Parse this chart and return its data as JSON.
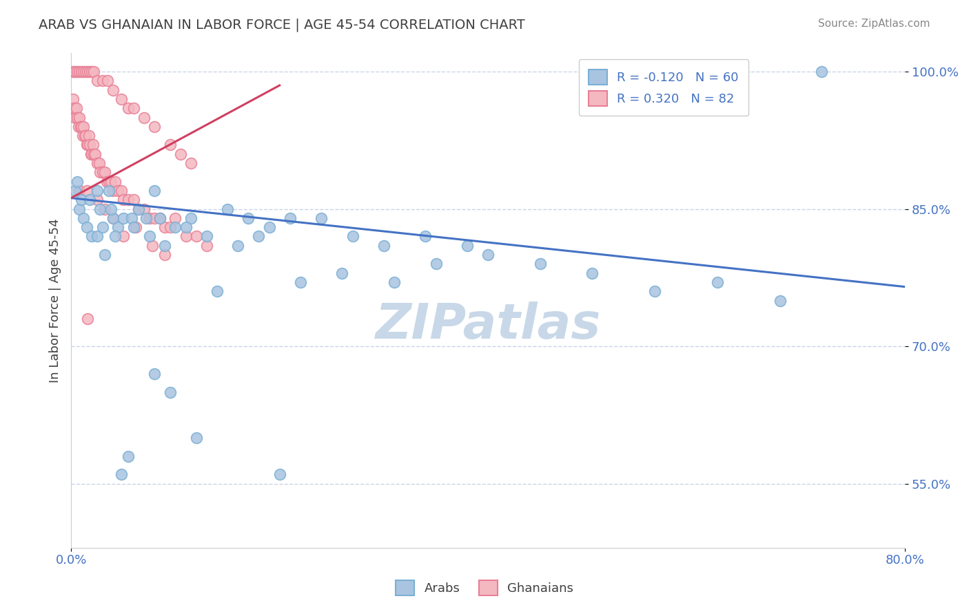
{
  "title": "ARAB VS GHANAIAN IN LABOR FORCE | AGE 45-54 CORRELATION CHART",
  "source_text": "Source: ZipAtlas.com",
  "ylabel": "In Labor Force | Age 45-54",
  "xlim": [
    0.0,
    0.8
  ],
  "ylim": [
    0.48,
    1.02
  ],
  "yticks": [
    0.55,
    0.7,
    0.85,
    1.0
  ],
  "yticklabels": [
    "55.0%",
    "70.0%",
    "85.0%",
    "100.0%"
  ],
  "arab_color": "#a8c4e0",
  "arab_edge_color": "#7aafd4",
  "ghanaian_color": "#f4b8c1",
  "ghanaian_edge_color": "#e87f95",
  "trend_arab_color": "#4472c4",
  "trend_ghanaian_color": "#d04060",
  "legend_arab_R": "-0.120",
  "legend_arab_N": "60",
  "legend_ghanaian_R": "0.320",
  "legend_ghanaian_N": "82",
  "watermark": "ZIPatlas",
  "watermark_color": "#c8d8e8",
  "background_color": "#ffffff",
  "grid_color": "#c8d4e8",
  "title_color": "#404040",
  "axis_label_color": "#404040",
  "tick_label_color": "#4472c4",
  "arab_trend_x0": 0.0,
  "arab_trend_y0": 0.862,
  "arab_trend_x1": 0.8,
  "arab_trend_y1": 0.765,
  "ghanaian_trend_x0": 0.0,
  "ghanaian_trend_y0": 0.862,
  "ghanaian_trend_x1": 0.2,
  "ghanaian_trend_y1": 0.985,
  "arab_x": [
    0.004,
    0.006,
    0.008,
    0.01,
    0.012,
    0.015,
    0.018,
    0.02,
    0.025,
    0.028,
    0.032,
    0.036,
    0.04,
    0.045,
    0.05,
    0.058,
    0.065,
    0.072,
    0.08,
    0.09,
    0.1,
    0.115,
    0.13,
    0.15,
    0.17,
    0.19,
    0.21,
    0.24,
    0.27,
    0.3,
    0.34,
    0.38,
    0.025,
    0.03,
    0.038,
    0.042,
    0.06,
    0.075,
    0.085,
    0.11,
    0.14,
    0.16,
    0.18,
    0.22,
    0.26,
    0.31,
    0.35,
    0.4,
    0.45,
    0.5,
    0.56,
    0.62,
    0.68,
    0.72,
    0.08,
    0.095,
    0.055,
    0.048,
    0.12,
    0.2
  ],
  "arab_y": [
    0.87,
    0.88,
    0.85,
    0.86,
    0.84,
    0.83,
    0.86,
    0.82,
    0.87,
    0.85,
    0.8,
    0.87,
    0.84,
    0.83,
    0.84,
    0.84,
    0.85,
    0.84,
    0.87,
    0.81,
    0.83,
    0.84,
    0.82,
    0.85,
    0.84,
    0.83,
    0.84,
    0.84,
    0.82,
    0.81,
    0.82,
    0.81,
    0.82,
    0.83,
    0.85,
    0.82,
    0.83,
    0.82,
    0.84,
    0.83,
    0.76,
    0.81,
    0.82,
    0.77,
    0.78,
    0.77,
    0.79,
    0.8,
    0.79,
    0.78,
    0.76,
    0.77,
    0.75,
    1.0,
    0.67,
    0.65,
    0.58,
    0.56,
    0.6,
    0.56
  ],
  "ghanaian_x": [
    0.001,
    0.002,
    0.003,
    0.004,
    0.005,
    0.006,
    0.007,
    0.008,
    0.009,
    0.01,
    0.011,
    0.012,
    0.013,
    0.014,
    0.015,
    0.016,
    0.017,
    0.018,
    0.019,
    0.02,
    0.021,
    0.022,
    0.023,
    0.025,
    0.027,
    0.028,
    0.03,
    0.032,
    0.034,
    0.036,
    0.038,
    0.04,
    0.042,
    0.045,
    0.048,
    0.05,
    0.055,
    0.06,
    0.065,
    0.07,
    0.075,
    0.08,
    0.085,
    0.09,
    0.095,
    0.1,
    0.11,
    0.12,
    0.13,
    0.002,
    0.004,
    0.006,
    0.008,
    0.01,
    0.012,
    0.014,
    0.016,
    0.018,
    0.02,
    0.022,
    0.025,
    0.03,
    0.035,
    0.04,
    0.048,
    0.055,
    0.06,
    0.07,
    0.08,
    0.095,
    0.105,
    0.115,
    0.008,
    0.015,
    0.025,
    0.032,
    0.04,
    0.05,
    0.062,
    0.078,
    0.09,
    0.016
  ],
  "ghanaian_y": [
    0.96,
    0.97,
    0.96,
    0.95,
    0.96,
    0.95,
    0.94,
    0.95,
    0.94,
    0.94,
    0.93,
    0.94,
    0.93,
    0.93,
    0.92,
    0.92,
    0.93,
    0.92,
    0.91,
    0.91,
    0.92,
    0.91,
    0.91,
    0.9,
    0.9,
    0.89,
    0.89,
    0.89,
    0.88,
    0.88,
    0.88,
    0.87,
    0.88,
    0.87,
    0.87,
    0.86,
    0.86,
    0.86,
    0.85,
    0.85,
    0.84,
    0.84,
    0.84,
    0.83,
    0.83,
    0.84,
    0.82,
    0.82,
    0.81,
    1.0,
    1.0,
    1.0,
    1.0,
    1.0,
    1.0,
    1.0,
    1.0,
    1.0,
    1.0,
    1.0,
    0.99,
    0.99,
    0.99,
    0.98,
    0.97,
    0.96,
    0.96,
    0.95,
    0.94,
    0.92,
    0.91,
    0.9,
    0.87,
    0.87,
    0.86,
    0.85,
    0.84,
    0.82,
    0.83,
    0.81,
    0.8,
    0.73
  ]
}
